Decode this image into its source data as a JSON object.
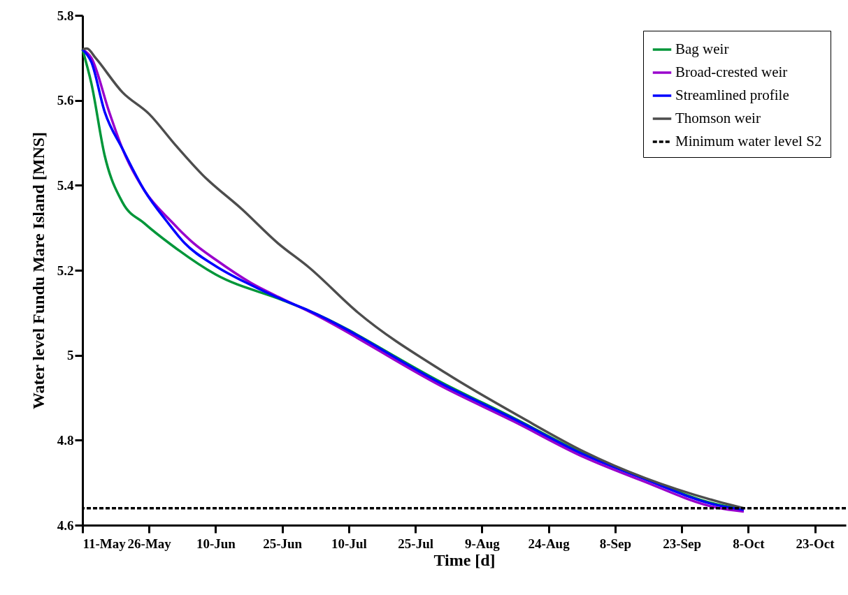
{
  "chart_data": {
    "type": "line",
    "xlabel": "Time [d]",
    "ylabel": "Water level Fundu Mare Island [MNS]",
    "xlim": [
      "--05-11",
      "--10-30"
    ],
    "xticks": [
      {
        "value": "--05-11",
        "label": "11-May"
      },
      {
        "value": "--05-26",
        "label": "26-May"
      },
      {
        "value": "--06-10",
        "label": "10-Jun"
      },
      {
        "value": "--06-25",
        "label": "25-Jun"
      },
      {
        "value": "--07-10",
        "label": "10-Jul"
      },
      {
        "value": "--07-25",
        "label": "25-Jul"
      },
      {
        "value": "--08-09",
        "label": "9-Aug"
      },
      {
        "value": "--08-24",
        "label": "24-Aug"
      },
      {
        "value": "--09-08",
        "label": "8-Sep"
      },
      {
        "value": "--09-23",
        "label": "23-Sep"
      },
      {
        "value": "--10-08",
        "label": "8-Oct"
      },
      {
        "value": "--10-23",
        "label": "23-Oct"
      }
    ],
    "ylim": [
      4.6,
      5.8
    ],
    "yticks": [
      4.6,
      4.8,
      5,
      5.2,
      5.4,
      5.6,
      5.8
    ],
    "grid": false,
    "legend": "top right",
    "series": [
      {
        "name": "Bag weir",
        "color": "#009639",
        "x": [
          "--05-11",
          "--05-13",
          "--05-16",
          "--05-20",
          "--05-25",
          "--05-31",
          "--06-10",
          "--06-25",
          "--07-01",
          "--08-01",
          "--08-16",
          "--09-01",
          "--09-14",
          "--10-01",
          "--10-07"
        ],
        "values": [
          5.72,
          5.64,
          5.47,
          5.36,
          5.31,
          5.26,
          5.19,
          5.13,
          5.105,
          4.93,
          4.853,
          4.768,
          4.713,
          4.649,
          4.638
        ]
      },
      {
        "name": "Broad-crested weir",
        "color": "#9900cc",
        "x": [
          "--05-11",
          "--05-13",
          "--05-17",
          "--05-20",
          "--05-25",
          "--05-31",
          "--06-05",
          "--06-10",
          "--06-18",
          "--06-25",
          "--07-01",
          "--08-01",
          "--08-16",
          "--09-01",
          "--09-14",
          "--10-01",
          "--10-07"
        ],
        "values": [
          5.72,
          5.7,
          5.573,
          5.486,
          5.387,
          5.315,
          5.264,
          5.225,
          5.17,
          5.133,
          5.103,
          4.921,
          4.845,
          4.76,
          4.705,
          4.641,
          4.632
        ]
      },
      {
        "name": "Streamlined profile",
        "color": "#0000ff",
        "x": [
          "--05-11",
          "--05-13",
          "--05-16",
          "--05-20",
          "--05-25",
          "--05-30",
          "--06-03",
          "--06-10",
          "--06-18",
          "--06-25",
          "--07-01",
          "--08-01",
          "--08-16",
          "--09-01",
          "--09-14",
          "--10-01",
          "--10-07"
        ],
        "values": [
          5.72,
          5.69,
          5.573,
          5.486,
          5.387,
          5.315,
          5.264,
          5.21,
          5.165,
          5.131,
          5.105,
          4.927,
          4.851,
          4.766,
          4.711,
          4.647,
          4.636
        ]
      },
      {
        "name": "Thomson weir",
        "color": "#4d4d4d",
        "x": [
          "--05-11",
          "--05-12",
          "--05-14",
          "--05-20",
          "--05-26",
          "--06-01",
          "--06-07",
          "--06-16",
          "--06-24",
          "--07-01",
          "--07-12",
          "--08-01",
          "--08-18",
          "--09-01",
          "--10-01",
          "--10-07"
        ],
        "values": [
          5.72,
          5.722,
          5.699,
          5.619,
          5.568,
          5.494,
          5.425,
          5.343,
          5.264,
          5.207,
          5.101,
          4.957,
          4.853,
          4.773,
          4.656,
          4.64
        ]
      }
    ],
    "ref_lines": [
      {
        "axis": "y",
        "value": 4.64,
        "label": "Minimum water level S2",
        "color": "#000000",
        "line_style": "dashed"
      }
    ]
  }
}
